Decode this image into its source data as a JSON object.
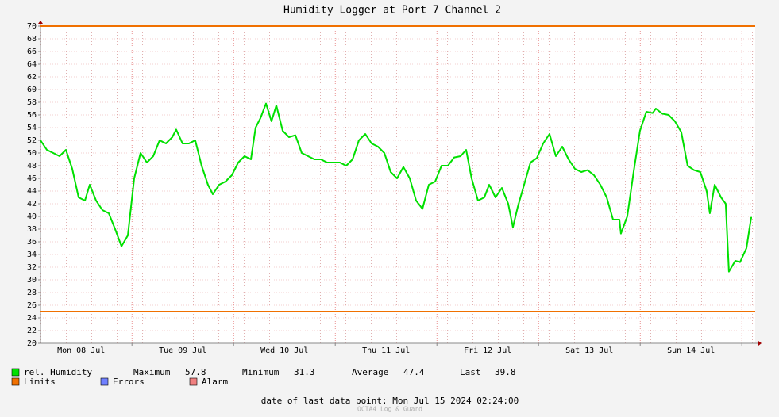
{
  "chart_data": {
    "type": "line",
    "title": "Humidity Logger at Port 7 Channel 2",
    "x": [
      "08 Jul 02:24",
      "08 Jul 03:54",
      "08 Jul 05:24",
      "08 Jul 06:54",
      "08 Jul 08:24",
      "08 Jul 09:54",
      "08 Jul 11:24",
      "08 Jul 12:54",
      "08 Jul 14:02",
      "08 Jul 15:31",
      "08 Jul 17:01",
      "08 Jul 18:31",
      "08 Jul 20:01",
      "08 Jul 21:31",
      "08 Jul 23:01",
      "09 Jul 00:31",
      "09 Jul 02:01",
      "09 Jul 03:31",
      "09 Jul 05:01",
      "09 Jul 06:31",
      "09 Jul 08:01",
      "09 Jul 09:31",
      "09 Jul 10:27",
      "09 Jul 11:57",
      "09 Jul 13:27",
      "09 Jul 14:57",
      "09 Jul 16:27",
      "09 Jul 17:57",
      "09 Jul 19:05",
      "09 Jul 20:35",
      "09 Jul 22:05",
      "09 Jul 23:35",
      "10 Jul 01:05",
      "10 Jul 02:35",
      "10 Jul 04:05",
      "10 Jul 05:12",
      "10 Jul 06:20",
      "10 Jul 07:39",
      "10 Jul 08:57",
      "10 Jul 10:05",
      "10 Jul 11:35",
      "10 Jul 13:05",
      "10 Jul 14:35",
      "10 Jul 16:05",
      "10 Jul 17:35",
      "10 Jul 19:05",
      "10 Jul 20:35",
      "10 Jul 22:05",
      "10 Jul 23:35",
      "11 Jul 01:05",
      "11 Jul 02:35",
      "11 Jul 04:05",
      "11 Jul 05:35",
      "11 Jul 07:05",
      "11 Jul 08:35",
      "11 Jul 10:05",
      "11 Jul 11:35",
      "11 Jul 13:05",
      "11 Jul 14:35",
      "11 Jul 16:05",
      "11 Jul 17:35",
      "11 Jul 19:05",
      "11 Jul 20:35",
      "11 Jul 22:05",
      "11 Jul 23:35",
      "12 Jul 01:05",
      "12 Jul 02:35",
      "12 Jul 04:05",
      "12 Jul 05:35",
      "12 Jul 06:54",
      "12 Jul 08:12",
      "12 Jul 09:42",
      "12 Jul 11:12",
      "12 Jul 12:20",
      "12 Jul 13:50",
      "12 Jul 15:20",
      "12 Jul 16:50",
      "12 Jul 17:57",
      "12 Jul 19:05",
      "12 Jul 20:35",
      "12 Jul 22:05",
      "12 Jul 23:35",
      "13 Jul 01:05",
      "13 Jul 02:35",
      "13 Jul 04:05",
      "13 Jul 05:35",
      "13 Jul 07:05",
      "13 Jul 08:35",
      "13 Jul 10:05",
      "13 Jul 11:35",
      "13 Jul 13:05",
      "13 Jul 14:35",
      "13 Jul 16:05",
      "13 Jul 17:35",
      "13 Jul 19:05",
      "13 Jul 19:27",
      "13 Jul 20:57",
      "13 Jul 22:27",
      "13 Jul 23:57",
      "14 Jul 01:27",
      "14 Jul 02:57",
      "14 Jul 03:42",
      "14 Jul 05:12",
      "14 Jul 06:42",
      "14 Jul 08:12",
      "14 Jul 09:42",
      "14 Jul 11:12",
      "14 Jul 12:42",
      "14 Jul 14:12",
      "14 Jul 15:42",
      "14 Jul 16:27",
      "14 Jul 17:35",
      "14 Jul 19:05",
      "14 Jul 20:12",
      "14 Jul 20:57",
      "14 Jul 22:27",
      "14 Jul 23:35",
      "15 Jul 01:05",
      "15 Jul 02:12",
      "15 Jul 02:24"
    ],
    "series": [
      {
        "name": "rel. Humidity",
        "color": "#00e000",
        "values": [
          52,
          50.5,
          50,
          49.5,
          50.5,
          47.5,
          43,
          42.5,
          45,
          42.5,
          41,
          40.5,
          38,
          35.3,
          37,
          46,
          50,
          48.5,
          49.5,
          52,
          51.5,
          52.5,
          53.7,
          51.5,
          51.5,
          52,
          48,
          45,
          43.5,
          45,
          45.5,
          46.5,
          48.5,
          49.5,
          49,
          54,
          55.5,
          57.8,
          55,
          57.5,
          53.5,
          52.5,
          52.8,
          50,
          49.5,
          49,
          49,
          48.5,
          48.5,
          48.5,
          48,
          49,
          52,
          53,
          51.5,
          51,
          50,
          47,
          46,
          47.8,
          46,
          42.5,
          41.2,
          45,
          45.5,
          48,
          48,
          49.3,
          49.5,
          50.5,
          46,
          42.5,
          43,
          45,
          43,
          44.5,
          42,
          38.3,
          41.5,
          45,
          48.5,
          49.2,
          51.5,
          53,
          49.5,
          51,
          49,
          47.5,
          47,
          47.3,
          46.5,
          45,
          43,
          39.5,
          39.5,
          37.3,
          40,
          47,
          53.5,
          56.5,
          56.3,
          57,
          56.2,
          56,
          55,
          53.3,
          48,
          47.3,
          47,
          44,
          40.5,
          45,
          43,
          42,
          31.3,
          33,
          32.8,
          35,
          39.8,
          39.8
        ]
      }
    ],
    "limits": {
      "name": "Limits",
      "color": "#f07000",
      "values": [
        25,
        70
      ]
    },
    "legend_extra": [
      {
        "name": "Errors",
        "color": "#7080ff"
      },
      {
        "name": "Alarm",
        "color": "#f08080"
      }
    ],
    "stats": [
      {
        "label": "Maximum",
        "value": 57.8
      },
      {
        "label": "Minimum",
        "value": 31.3
      },
      {
        "label": "Average",
        "value": 47.4
      },
      {
        "label": "Last",
        "value": 39.8
      }
    ],
    "xlim": [
      "08 Jul 02:24",
      "15 Jul 02:24"
    ],
    "xticks": [
      {
        "value": "08 Jul 12:00",
        "label": "Mon 08 Jul"
      },
      {
        "value": "09 Jul 12:00",
        "label": "Tue 09 Jul"
      },
      {
        "value": "10 Jul 12:00",
        "label": "Wed 10 Jul"
      },
      {
        "value": "11 Jul 12:00",
        "label": "Thu 11 Jul"
      },
      {
        "value": "12 Jul 12:00",
        "label": "Fri 12 Jul"
      },
      {
        "value": "13 Jul 12:00",
        "label": "Sat 13 Jul"
      },
      {
        "value": "14 Jul 12:00",
        "label": "Sun 14 Jul"
      }
    ],
    "xgrid_major": [
      "09 Jul 00:00",
      "10 Jul 00:00",
      "11 Jul 00:00",
      "12 Jul 00:00",
      "13 Jul 00:00",
      "14 Jul 00:00",
      "15 Jul 00:00"
    ],
    "ylim": [
      20,
      70
    ],
    "yticks": [
      20,
      22,
      24,
      26,
      28,
      30,
      32,
      34,
      36,
      38,
      40,
      42,
      44,
      46,
      48,
      50,
      52,
      54,
      56,
      58,
      60,
      62,
      64,
      66,
      68,
      70
    ],
    "grid": true,
    "footer": "date of last data point:  Mon Jul 15 2024 02:24:00",
    "watermark": "OCTA4 Log & Guard"
  }
}
